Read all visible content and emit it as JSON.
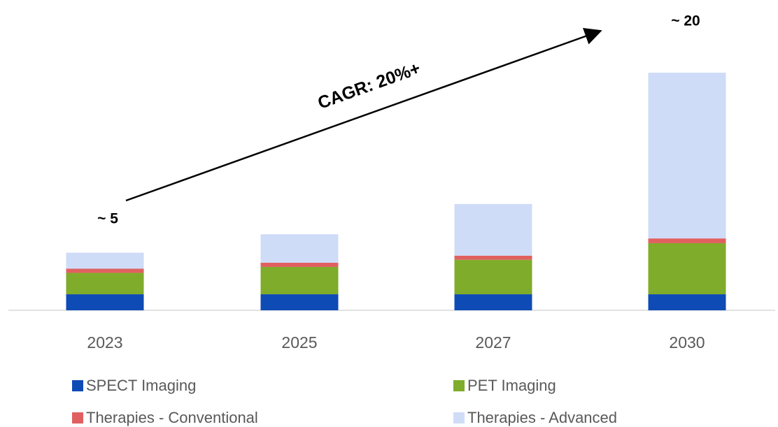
{
  "chart_data": {
    "type": "bar",
    "stacked": true,
    "categories": [
      "2023",
      "2025",
      "2027",
      "2030"
    ],
    "series": [
      {
        "name": "SPECT Imaging",
        "color": "#0f4bb5",
        "values": [
          1.35,
          1.35,
          1.35,
          1.35
        ]
      },
      {
        "name": "PET Imaging",
        "color": "#7fac2a",
        "values": [
          1.8,
          2.3,
          2.9,
          4.3
        ]
      },
      {
        "name": "Therapies - Conventional",
        "color": "#e06060",
        "values": [
          0.35,
          0.35,
          0.35,
          0.4
        ]
      },
      {
        "name": "Therapies - Advanced",
        "color": "#cfdcf8",
        "values": [
          1.35,
          2.4,
          4.35,
          13.95
        ]
      }
    ],
    "ylim": [
      0,
      20
    ],
    "annotations": [
      "~ 5",
      "~ 20",
      "CAGR: 20%+"
    ]
  }
}
